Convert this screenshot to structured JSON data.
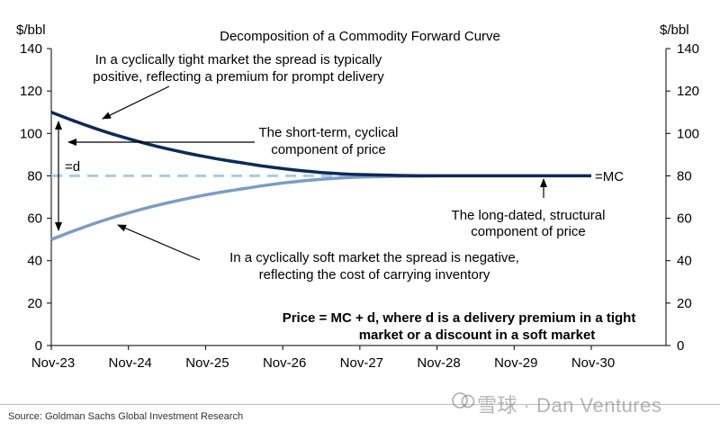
{
  "chart_data": {
    "type": "line",
    "title": "Decomposition of a Commodity Forward Curve",
    "y_unit_left": "$/bbl",
    "y_unit_right": "$/bbl",
    "ylim": [
      0,
      140
    ],
    "y_ticks": [
      "0",
      "20",
      "40",
      "60",
      "80",
      "100",
      "120",
      "140"
    ],
    "x_ticks": [
      "Nov-23",
      "Nov-24",
      "Nov-25",
      "Nov-26",
      "Nov-27",
      "Nov-28",
      "Nov-29",
      "Nov-30"
    ],
    "series": [
      {
        "key": "tight",
        "color": "#0d2a5a",
        "x": [
          "Nov-23",
          "Feb-24",
          "May-24",
          "Aug-24",
          "Nov-24",
          "Feb-25",
          "May-25",
          "Aug-25",
          "Nov-25",
          "Feb-26",
          "May-26",
          "Aug-26",
          "Nov-26",
          "Feb-27",
          "May-27",
          "Aug-27",
          "Nov-27",
          "May-28",
          "Nov-28",
          "Nov-29",
          "Nov-30"
        ],
        "values": [
          110,
          106.5,
          103.2,
          100.2,
          97.5,
          95,
          92.8,
          90.8,
          89,
          87.4,
          86,
          84.6,
          83.4,
          82.4,
          81.6,
          81,
          80.6,
          80.2,
          80,
          80,
          80
        ]
      },
      {
        "key": "soft",
        "color": "#7c9cc9",
        "x": [
          "Nov-23",
          "Feb-24",
          "May-24",
          "Aug-24",
          "Nov-24",
          "Feb-25",
          "May-25",
          "Aug-25",
          "Nov-25",
          "Feb-26",
          "May-26",
          "Aug-26",
          "Nov-26",
          "Feb-27",
          "May-27",
          "Aug-27",
          "Nov-27",
          "May-28",
          "Nov-28"
        ],
        "values": [
          50,
          53.5,
          56.8,
          59.8,
          62.5,
          65,
          67.2,
          69.2,
          71,
          72.6,
          74,
          75.4,
          76.6,
          77.6,
          78.4,
          79,
          79.4,
          79.8,
          80
        ]
      },
      {
        "key": "mc",
        "color": "#a9cbe8",
        "dashed": true,
        "x": [
          "Nov-23",
          "Nov-28"
        ],
        "values": [
          80,
          80
        ]
      }
    ],
    "annotations": {
      "tight": [
        "In a cyclically tight market the spread is typically",
        "positive, reflecting a premium for prompt delivery"
      ],
      "short_term": [
        "The short-term, cyclical",
        "component of price"
      ],
      "d_label": "=d",
      "mc_label": "=MC",
      "long_dated": [
        "The long-dated, structural",
        "component of price"
      ],
      "soft": [
        "In a cyclically soft market the spread is negative,",
        "reflecting the cost of carrying inventory"
      ],
      "formula": [
        "Price = MC + d, where d is a delivery premium in a tight",
        "market or a discount in a soft market"
      ]
    }
  },
  "source": "Source: Goldman Sachs Global Investment Research",
  "watermark": "雪球 · Dan Ventures",
  "colors": {
    "tight": "#0d2a5a",
    "soft": "#7c9cc9",
    "mc": "#a9cbe8",
    "axis": "#000000"
  }
}
